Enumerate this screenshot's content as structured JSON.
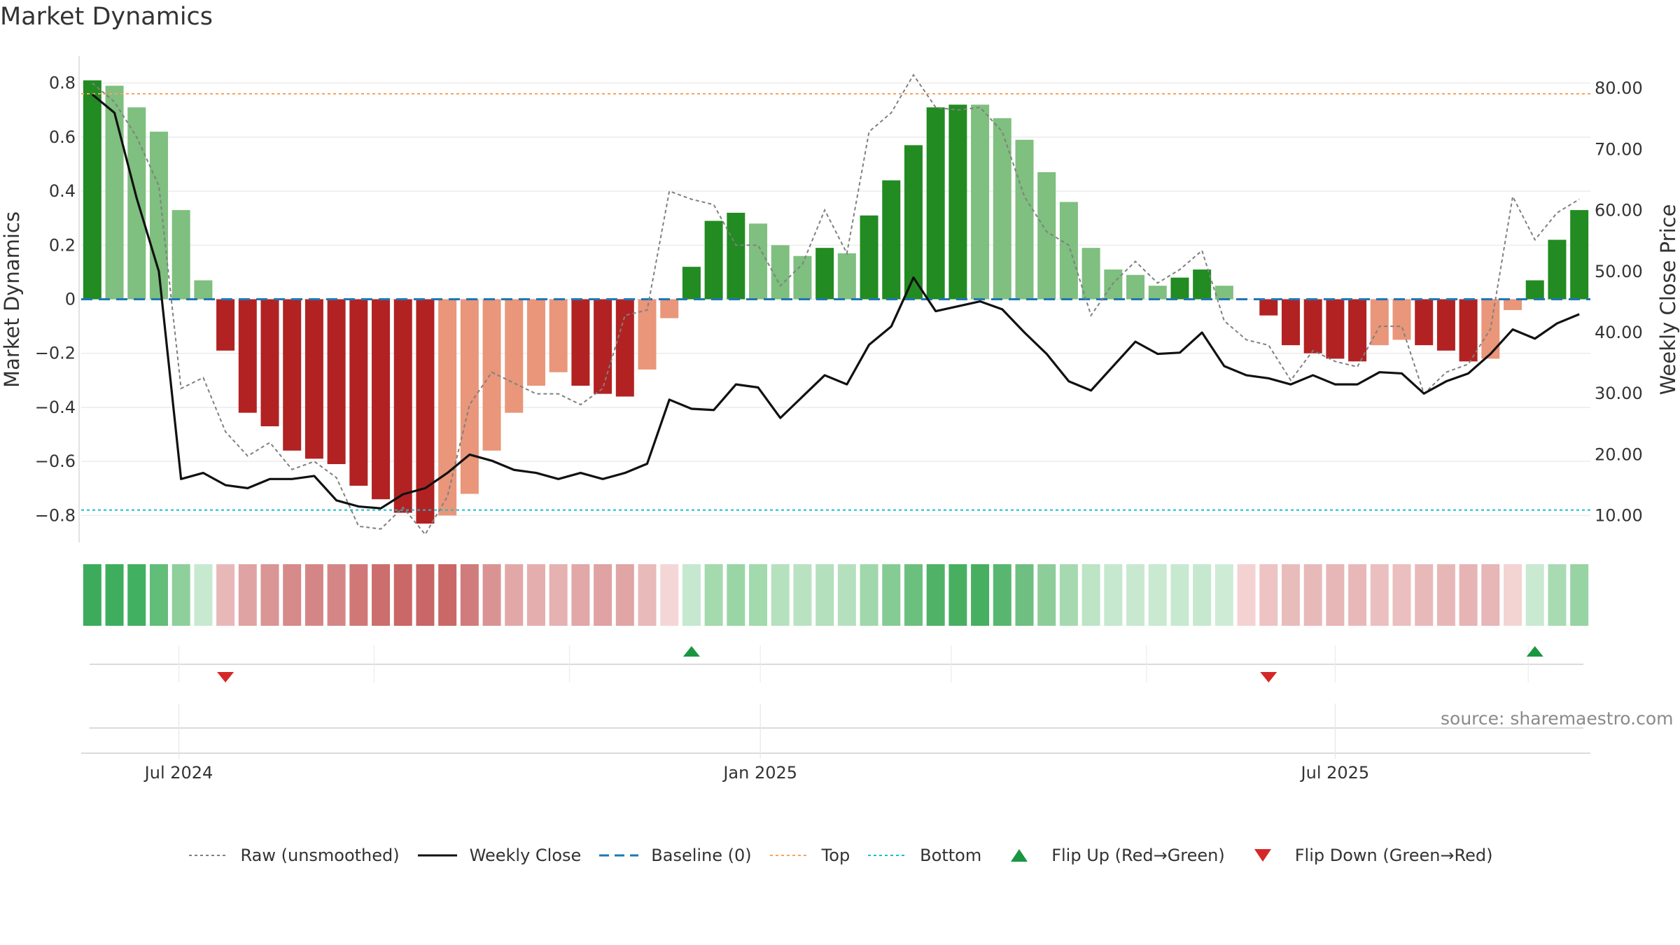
{
  "chart_title": "Market Dynamics",
  "source": "source: sharemaestro.com",
  "chart_data": {
    "type": "bar",
    "title": "Market Dynamics",
    "ylabel": "Market Dynamics",
    "y2label": "Weekly Close Price",
    "ylim": [
      -0.9,
      0.9
    ],
    "y2lim": [
      5.6,
      85.3
    ],
    "yticks": [
      0.8,
      0.6,
      0.4,
      0.2,
      0,
      -0.2,
      -0.4,
      -0.6,
      -0.8
    ],
    "ytick_labels": [
      "0.8",
      "0.6",
      "0.4",
      "0.2",
      "0",
      "−0.2",
      "−0.4",
      "−0.6",
      "−0.8"
    ],
    "y2ticks": [
      80,
      70,
      60,
      50,
      40,
      30,
      20,
      10
    ],
    "y2tick_labels": [
      "80.00",
      "70.00",
      "60.00",
      "50.00",
      "40.00",
      "30.00",
      "20.00",
      "10.00"
    ],
    "xticks": [
      {
        "label": "Jul 2024",
        "week": 4.4
      },
      {
        "label": "Jan 2025",
        "week": 30.6
      },
      {
        "label": "Jul 2025",
        "week": 56.5
      }
    ],
    "top_level": 0.76,
    "bottom_level": -0.78,
    "baseline": 0,
    "colors": {
      "strong_green": "#228b22",
      "light_green": "#7fbf7f",
      "strong_red": "#b22222",
      "light_red": "#e9967a",
      "raw": "#808080",
      "close": "#111111",
      "baseline": "#1f77b4",
      "top": "#f4a460",
      "bottom": "#17becf",
      "flip_up": "#1a9641",
      "flip_down": "#d62728"
    },
    "dynamics": [
      0.81,
      0.79,
      0.71,
      0.62,
      0.33,
      0.07,
      -0.19,
      -0.42,
      -0.47,
      -0.56,
      -0.59,
      -0.61,
      -0.69,
      -0.74,
      -0.79,
      -0.83,
      -0.8,
      -0.72,
      -0.56,
      -0.42,
      -0.32,
      -0.27,
      -0.32,
      -0.35,
      -0.36,
      -0.26,
      -0.07,
      0.12,
      0.29,
      0.32,
      0.28,
      0.2,
      0.16,
      0.19,
      0.17,
      0.31,
      0.44,
      0.57,
      0.71,
      0.72,
      0.72,
      0.67,
      0.59,
      0.47,
      0.36,
      0.19,
      0.11,
      0.09,
      0.05,
      0.08,
      0.11,
      0.05,
      0,
      -0.06,
      -0.17,
      -0.2,
      -0.22,
      -0.23,
      -0.17,
      -0.15,
      -0.17,
      -0.19,
      -0.23,
      -0.22,
      -0.04,
      0.07,
      0.22,
      0.33
    ],
    "bar_shade": [
      "strong",
      "light",
      "light",
      "light",
      "light",
      "light",
      "strong",
      "strong",
      "strong",
      "strong",
      "strong",
      "strong",
      "strong",
      "strong",
      "strong",
      "strong",
      "light",
      "light",
      "light",
      "light",
      "light",
      "light",
      "strong",
      "strong",
      "strong",
      "light",
      "light",
      "strong",
      "strong",
      "strong",
      "light",
      "light",
      "light",
      "strong",
      "light",
      "strong",
      "strong",
      "strong",
      "strong",
      "strong",
      "light",
      "light",
      "light",
      "light",
      "light",
      "light",
      "light",
      "light",
      "light",
      "strong",
      "strong",
      "light",
      "light",
      "strong",
      "strong",
      "strong",
      "strong",
      "strong",
      "light",
      "light",
      "strong",
      "strong",
      "strong",
      "light",
      "light",
      "strong",
      "strong",
      "strong"
    ],
    "raw": [
      0.8,
      0.73,
      0.6,
      0.42,
      -0.33,
      -0.29,
      -0.49,
      -0.58,
      -0.53,
      -0.63,
      -0.6,
      -0.66,
      -0.84,
      -0.85,
      -0.77,
      -0.87,
      -0.73,
      -0.39,
      -0.27,
      -0.31,
      -0.35,
      -0.35,
      -0.39,
      -0.33,
      -0.06,
      -0.04,
      0.4,
      0.37,
      0.35,
      0.2,
      0.2,
      0.05,
      0.13,
      0.33,
      0.17,
      0.62,
      0.69,
      0.83,
      0.71,
      0.7,
      0.71,
      0.62,
      0.38,
      0.25,
      0.2,
      -0.06,
      0.06,
      0.14,
      0.06,
      0.11,
      0.18,
      -0.08,
      -0.15,
      -0.17,
      -0.3,
      -0.19,
      -0.23,
      -0.25,
      -0.1,
      -0.1,
      -0.35,
      -0.27,
      -0.24,
      -0.11,
      0.38,
      0.22,
      0.32,
      0.37
    ],
    "close": [
      79,
      76,
      62,
      50,
      16,
      17,
      15,
      14.5,
      16,
      16,
      16.5,
      12.5,
      11.5,
      11.2,
      13.5,
      14.5,
      17,
      20,
      19,
      17.5,
      17,
      16,
      17,
      16,
      17,
      18.5,
      29,
      27.5,
      27.3,
      31.5,
      31,
      26,
      29.5,
      33,
      31.5,
      38,
      41,
      49,
      43.5,
      44.3,
      45.1,
      43.8,
      40,
      36.5,
      32,
      30.5,
      34.5,
      38.5,
      36.5,
      36.7,
      40,
      34.5,
      33,
      32.5,
      31.5,
      33,
      31.5,
      31.5,
      33.5,
      33.3,
      30,
      32,
      33.3,
      36.5,
      40.5,
      39,
      41.5,
      43
    ]
  },
  "strip": {
    "colors": [
      "#3cac5c",
      "#3eae5e",
      "#42b061",
      "#62bd79",
      "#8ecf9c",
      "#c7e9d0",
      "#e8b8b8",
      "#e0a3a3",
      "#da9595",
      "#d68a8a",
      "#d48686",
      "#d48686",
      "#d07878",
      "#cc6e6e",
      "#ca6767",
      "#c96666",
      "#ca6868",
      "#d07c7c",
      "#da9393",
      "#e2a8a8",
      "#e5aeae",
      "#e6b1b1",
      "#e2a7a7",
      "#e0a2a2",
      "#e1a5a5",
      "#e9baba",
      "#f5d6d6",
      "#c6e8cf",
      "#a5daae",
      "#9ad5a6",
      "#a2d9ad",
      "#b6e1bf",
      "#b9e2c1",
      "#b4e0bd",
      "#b5e0be",
      "#a0d7ab",
      "#86cb94",
      "#6cc07e",
      "#50b266",
      "#48af61",
      "#48af61",
      "#58b670",
      "#6ebf81",
      "#8ccd9a",
      "#a6d9b0",
      "#bde4c5",
      "#c6e8cf",
      "#c8e9d0",
      "#c9e9d1",
      "#c7e9cf",
      "#c6e8cf",
      "#ceecd5",
      "#f4d2d2",
      "#edc3c3",
      "#e9bcbc",
      "#e8b9b9",
      "#e7b6b6",
      "#e8b8b8",
      "#ebbfbf",
      "#ebbfbf",
      "#e8b9b9",
      "#e7b7b7",
      "#e6b4b4",
      "#e7b6b6",
      "#f4d3d3",
      "#c9e9d1",
      "#a9dbb3",
      "#98d3a4"
    ]
  },
  "flips": [
    {
      "type": "down",
      "week": 6.5
    },
    {
      "type": "up",
      "week": 27.5
    },
    {
      "type": "down",
      "week": 53.5
    },
    {
      "type": "up",
      "week": 65.5
    }
  ],
  "legend": [
    {
      "label": "Raw (unsmoothed)",
      "icon": "dotted-gray-line"
    },
    {
      "label": "Weekly Close",
      "icon": "solid-black-line"
    },
    {
      "label": "Baseline (0)",
      "icon": "dashed-blue-line"
    },
    {
      "label": "Top",
      "icon": "dotted-orange-line"
    },
    {
      "label": "Bottom",
      "icon": "dotted-cyan-line"
    },
    {
      "label": "Flip Up (Red→Green)",
      "icon": "green-up-triangle"
    },
    {
      "label": "Flip Down (Green→Red)",
      "icon": "red-down-triangle"
    }
  ]
}
